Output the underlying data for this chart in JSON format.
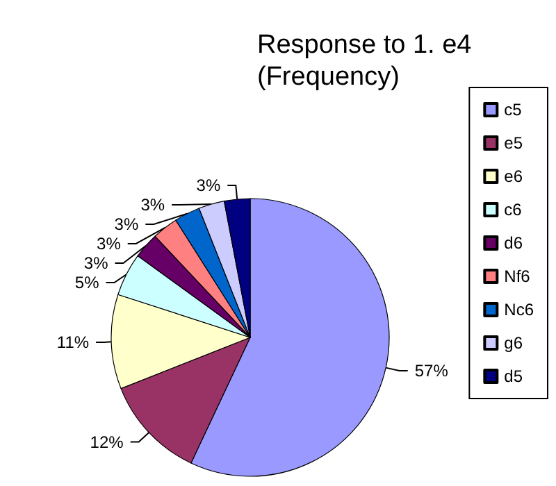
{
  "chart_data": {
    "type": "pie",
    "title": "Response to 1. e4",
    "subtitle": "(Frequency)",
    "categories": [
      "c5",
      "e5",
      "e6",
      "c6",
      "d6",
      "Nf6",
      "Nc6",
      "g6",
      "d5"
    ],
    "values": [
      57,
      12,
      11,
      5,
      3,
      3,
      3,
      3,
      3
    ],
    "colors": [
      "#9999ff",
      "#993366",
      "#ffffcc",
      "#ccffff",
      "#660066",
      "#ff8080",
      "#0066cc",
      "#ccccff",
      "#000080"
    ],
    "value_labels": [
      "57%",
      "12%",
      "11%",
      "5%",
      "3%",
      "3%",
      "3%",
      "3%",
      "3%"
    ],
    "legend": "right"
  }
}
